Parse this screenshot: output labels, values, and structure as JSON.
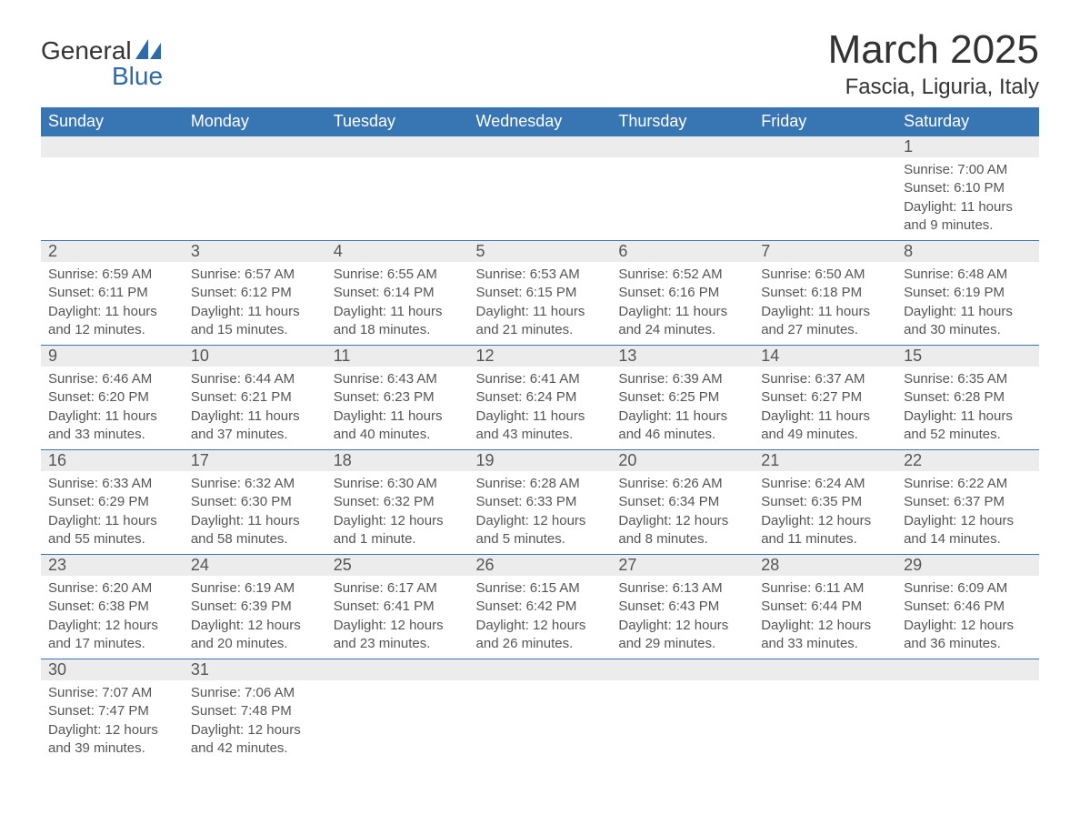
{
  "brand": {
    "word1": "General",
    "word2": "Blue"
  },
  "title": "March 2025",
  "location": "Fascia, Liguria, Italy",
  "colors": {
    "header_bg": "#3876b3",
    "header_text": "#ffffff",
    "daynum_bg": "#ececec",
    "body_text": "#555555",
    "brand_blue": "#2e6aa8",
    "page_bg": "#ffffff"
  },
  "typography": {
    "title_fontsize": 44,
    "location_fontsize": 24,
    "weekday_fontsize": 18,
    "daynum_fontsize": 18,
    "body_fontsize": 15
  },
  "weekdays": [
    "Sunday",
    "Monday",
    "Tuesday",
    "Wednesday",
    "Thursday",
    "Friday",
    "Saturday"
  ],
  "labels": {
    "sunrise": "Sunrise:",
    "sunset": "Sunset:",
    "daylight": "Daylight:"
  },
  "weeks": [
    [
      {
        "empty": true
      },
      {
        "empty": true
      },
      {
        "empty": true
      },
      {
        "empty": true
      },
      {
        "empty": true
      },
      {
        "empty": true
      },
      {
        "day": "1",
        "sunrise": "7:00 AM",
        "sunset": "6:10 PM",
        "daylight": "11 hours and 9 minutes."
      }
    ],
    [
      {
        "day": "2",
        "sunrise": "6:59 AM",
        "sunset": "6:11 PM",
        "daylight": "11 hours and 12 minutes."
      },
      {
        "day": "3",
        "sunrise": "6:57 AM",
        "sunset": "6:12 PM",
        "daylight": "11 hours and 15 minutes."
      },
      {
        "day": "4",
        "sunrise": "6:55 AM",
        "sunset": "6:14 PM",
        "daylight": "11 hours and 18 minutes."
      },
      {
        "day": "5",
        "sunrise": "6:53 AM",
        "sunset": "6:15 PM",
        "daylight": "11 hours and 21 minutes."
      },
      {
        "day": "6",
        "sunrise": "6:52 AM",
        "sunset": "6:16 PM",
        "daylight": "11 hours and 24 minutes."
      },
      {
        "day": "7",
        "sunrise": "6:50 AM",
        "sunset": "6:18 PM",
        "daylight": "11 hours and 27 minutes."
      },
      {
        "day": "8",
        "sunrise": "6:48 AM",
        "sunset": "6:19 PM",
        "daylight": "11 hours and 30 minutes."
      }
    ],
    [
      {
        "day": "9",
        "sunrise": "6:46 AM",
        "sunset": "6:20 PM",
        "daylight": "11 hours and 33 minutes."
      },
      {
        "day": "10",
        "sunrise": "6:44 AM",
        "sunset": "6:21 PM",
        "daylight": "11 hours and 37 minutes."
      },
      {
        "day": "11",
        "sunrise": "6:43 AM",
        "sunset": "6:23 PM",
        "daylight": "11 hours and 40 minutes."
      },
      {
        "day": "12",
        "sunrise": "6:41 AM",
        "sunset": "6:24 PM",
        "daylight": "11 hours and 43 minutes."
      },
      {
        "day": "13",
        "sunrise": "6:39 AM",
        "sunset": "6:25 PM",
        "daylight": "11 hours and 46 minutes."
      },
      {
        "day": "14",
        "sunrise": "6:37 AM",
        "sunset": "6:27 PM",
        "daylight": "11 hours and 49 minutes."
      },
      {
        "day": "15",
        "sunrise": "6:35 AM",
        "sunset": "6:28 PM",
        "daylight": "11 hours and 52 minutes."
      }
    ],
    [
      {
        "day": "16",
        "sunrise": "6:33 AM",
        "sunset": "6:29 PM",
        "daylight": "11 hours and 55 minutes."
      },
      {
        "day": "17",
        "sunrise": "6:32 AM",
        "sunset": "6:30 PM",
        "daylight": "11 hours and 58 minutes."
      },
      {
        "day": "18",
        "sunrise": "6:30 AM",
        "sunset": "6:32 PM",
        "daylight": "12 hours and 1 minute."
      },
      {
        "day": "19",
        "sunrise": "6:28 AM",
        "sunset": "6:33 PM",
        "daylight": "12 hours and 5 minutes."
      },
      {
        "day": "20",
        "sunrise": "6:26 AM",
        "sunset": "6:34 PM",
        "daylight": "12 hours and 8 minutes."
      },
      {
        "day": "21",
        "sunrise": "6:24 AM",
        "sunset": "6:35 PM",
        "daylight": "12 hours and 11 minutes."
      },
      {
        "day": "22",
        "sunrise": "6:22 AM",
        "sunset": "6:37 PM",
        "daylight": "12 hours and 14 minutes."
      }
    ],
    [
      {
        "day": "23",
        "sunrise": "6:20 AM",
        "sunset": "6:38 PM",
        "daylight": "12 hours and 17 minutes."
      },
      {
        "day": "24",
        "sunrise": "6:19 AM",
        "sunset": "6:39 PM",
        "daylight": "12 hours and 20 minutes."
      },
      {
        "day": "25",
        "sunrise": "6:17 AM",
        "sunset": "6:41 PM",
        "daylight": "12 hours and 23 minutes."
      },
      {
        "day": "26",
        "sunrise": "6:15 AM",
        "sunset": "6:42 PM",
        "daylight": "12 hours and 26 minutes."
      },
      {
        "day": "27",
        "sunrise": "6:13 AM",
        "sunset": "6:43 PM",
        "daylight": "12 hours and 29 minutes."
      },
      {
        "day": "28",
        "sunrise": "6:11 AM",
        "sunset": "6:44 PM",
        "daylight": "12 hours and 33 minutes."
      },
      {
        "day": "29",
        "sunrise": "6:09 AM",
        "sunset": "6:46 PM",
        "daylight": "12 hours and 36 minutes."
      }
    ],
    [
      {
        "day": "30",
        "sunrise": "7:07 AM",
        "sunset": "7:47 PM",
        "daylight": "12 hours and 39 minutes."
      },
      {
        "day": "31",
        "sunrise": "7:06 AM",
        "sunset": "7:48 PM",
        "daylight": "12 hours and 42 minutes."
      },
      {
        "empty": true
      },
      {
        "empty": true
      },
      {
        "empty": true
      },
      {
        "empty": true
      },
      {
        "empty": true
      }
    ]
  ]
}
